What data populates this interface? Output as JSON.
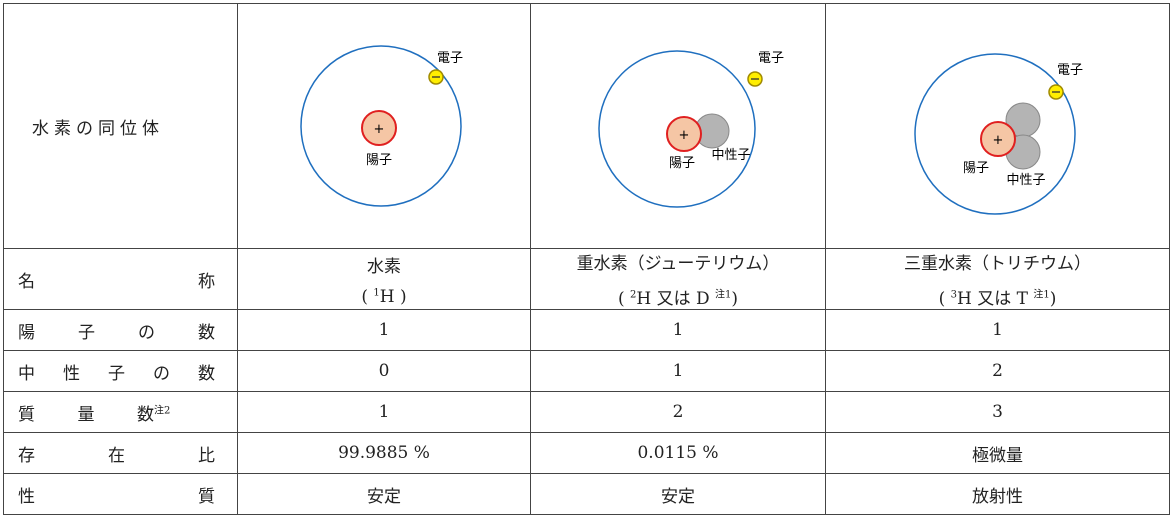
{
  "header": {
    "title": "水素の同位体"
  },
  "diagrams": [
    {
      "electron": "電子",
      "proton": "陽子",
      "plus": "+"
    },
    {
      "electron": "電子",
      "proton": "陽子",
      "neutron": "中性子",
      "plus": "+"
    },
    {
      "electron": "電子",
      "proton": "陽子",
      "neutron": "中性子",
      "plus": "+"
    }
  ],
  "names": {
    "label": "名称",
    "cells": [
      {
        "name": "水素",
        "open": "(",
        "mass": "1",
        "symbol": "H",
        "close": ")"
      },
      {
        "name": "重水素（ジューテリウム）",
        "open": "(",
        "mass": "2",
        "symbol": "H",
        "or": "又は",
        "alt": "D",
        "note": "注1",
        "close": ")"
      },
      {
        "name": "三重水素（トリチウム）",
        "open": "(",
        "mass": "3",
        "symbol": "H",
        "or": "又は",
        "alt": "T",
        "note": "注1",
        "close": ")"
      }
    ]
  },
  "table": {
    "rows": [
      {
        "label": "陽子の数",
        "cells": [
          "1",
          "1",
          "1"
        ]
      },
      {
        "label": "中性子の数",
        "cells": [
          "0",
          "1",
          "2"
        ]
      },
      {
        "label": "質量数",
        "note": "注2",
        "cells": [
          "1",
          "2",
          "3"
        ]
      },
      {
        "label": "存在比",
        "cells": [
          "99.9885 %",
          "0.0115 %",
          "極微量"
        ]
      },
      {
        "label": "性質",
        "cells": [
          "安定",
          "安定",
          "放射性"
        ]
      }
    ]
  }
}
